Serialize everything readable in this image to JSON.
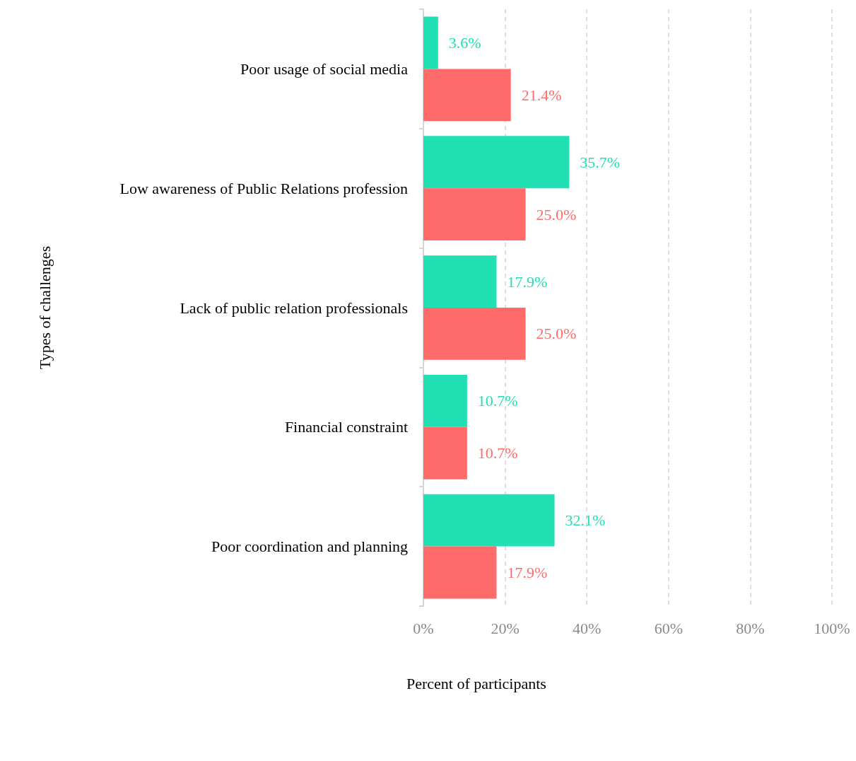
{
  "chart_data": {
    "type": "bar",
    "orientation": "horizontal",
    "xlabel": "Percent of participants",
    "ylabel": "Types of challenges",
    "categories": [
      "Poor usage of social media",
      "Low awareness of Public Relations profession",
      "Lack of public relation professionals",
      "Financial constraint",
      "Poor coordination and planning"
    ],
    "series": [
      {
        "color": "#20e0b4",
        "values": [
          3.6,
          35.7,
          17.9,
          10.7,
          32.1
        ],
        "value_labels": [
          "3.6%",
          "35.7%",
          "17.9%",
          "10.7%",
          "32.1%"
        ]
      },
      {
        "color": "#ff6b6b",
        "values": [
          21.4,
          25.0,
          25.0,
          10.7,
          17.9
        ],
        "value_labels": [
          "21.4%",
          "25.0%",
          "25.0%",
          "10.7%",
          "17.9%"
        ]
      }
    ],
    "xlim": [
      0,
      100
    ],
    "xticks": [
      {
        "value": 0,
        "label": "0%"
      },
      {
        "value": 20,
        "label": "20%"
      },
      {
        "value": 40,
        "label": "40%"
      },
      {
        "value": 60,
        "label": "60%"
      },
      {
        "value": 80,
        "label": "80%"
      },
      {
        "value": 100,
        "label": "100%"
      }
    ],
    "grid": "x"
  }
}
